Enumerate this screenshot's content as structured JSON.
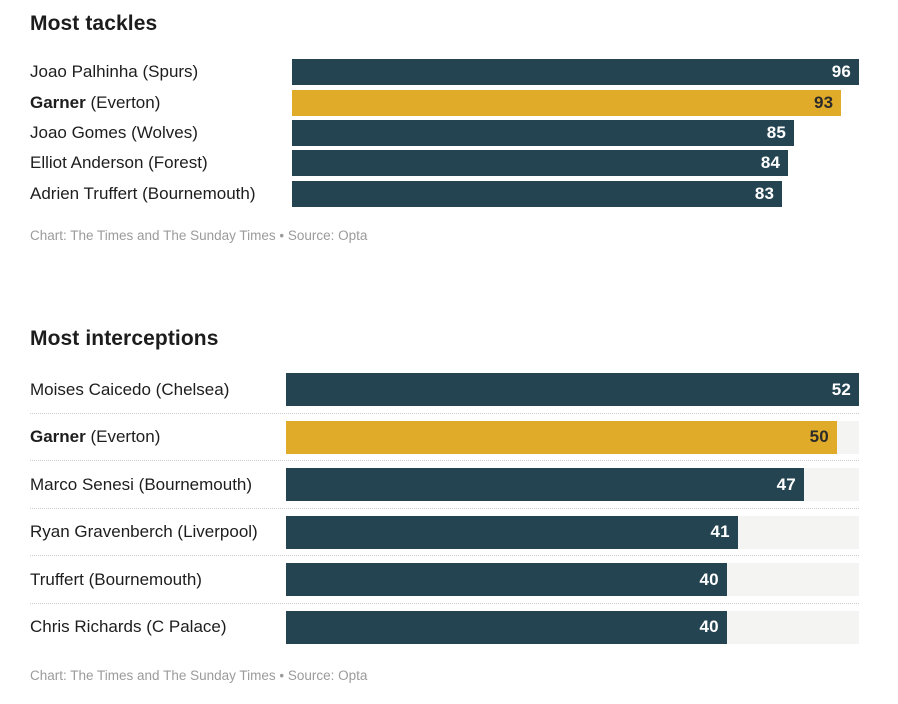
{
  "page": {
    "background": "#ffffff"
  },
  "colors": {
    "bar": "#254452",
    "highlight": "#dfab28",
    "track": "#f4f4f2",
    "value_on_bar": "#ffffff",
    "value_on_highlight": "#2b2b2b",
    "label_text": "#1d1d1d",
    "caption_text": "#9b9b9b",
    "separator": "#cccccc"
  },
  "chart_data": [
    {
      "type": "bar",
      "orientation": "horizontal",
      "title": "Most tackles",
      "caption": "Chart: The Times and The Sunday Times • Source: Opta",
      "xlim": [
        0,
        96
      ],
      "grid": false,
      "legend": false,
      "background_track": false,
      "row_separators": false,
      "value_labels": "inside-end",
      "categories": [
        "Joao Palhinha (Spurs)",
        "Garner (Everton)",
        "Joao Gomes (Wolves)",
        "Elliot Anderson (Forest)",
        "Adrien Truffert (Bournemouth)"
      ],
      "values": [
        96,
        93,
        85,
        84,
        83
      ],
      "rows": [
        {
          "name": "Joao Palhinha",
          "team": "(Spurs)",
          "value": 96,
          "highlighted": false
        },
        {
          "name": "Garner",
          "team": "(Everton)",
          "value": 93,
          "highlighted": true
        },
        {
          "name": "Joao Gomes",
          "team": "(Wolves)",
          "value": 85,
          "highlighted": false
        },
        {
          "name": "Elliot Anderson",
          "team": "(Forest)",
          "value": 84,
          "highlighted": false
        },
        {
          "name": "Adrien Truffert",
          "team": "(Bournemouth)",
          "value": 83,
          "highlighted": false
        }
      ]
    },
    {
      "type": "bar",
      "orientation": "horizontal",
      "title": "Most interceptions",
      "caption": "Chart: The Times and The Sunday Times • Source: Opta",
      "xlim": [
        0,
        52
      ],
      "grid": false,
      "legend": false,
      "background_track": true,
      "row_separators": true,
      "value_labels": "inside-end",
      "categories": [
        "Moises Caicedo (Chelsea)",
        "Garner (Everton)",
        "Marco Senesi (Bournemouth)",
        "Ryan Gravenberch (Liverpool)",
        "Truffert (Bournemouth)",
        "Chris Richards (C Palace)"
      ],
      "values": [
        52,
        50,
        47,
        41,
        40,
        40
      ],
      "rows": [
        {
          "name": "Moises Caicedo",
          "team": "(Chelsea)",
          "value": 52,
          "highlighted": false
        },
        {
          "name": "Garner",
          "team": "(Everton)",
          "value": 50,
          "highlighted": true
        },
        {
          "name": "Marco Senesi",
          "team": "(Bournemouth)",
          "value": 47,
          "highlighted": false
        },
        {
          "name": "Ryan Gravenberch",
          "team": "(Liverpool)",
          "value": 41,
          "highlighted": false
        },
        {
          "name": "Truffert",
          "team": "(Bournemouth)",
          "value": 40,
          "highlighted": false
        },
        {
          "name": "Chris Richards",
          "team": "(C Palace)",
          "value": 40,
          "highlighted": false
        }
      ]
    }
  ]
}
